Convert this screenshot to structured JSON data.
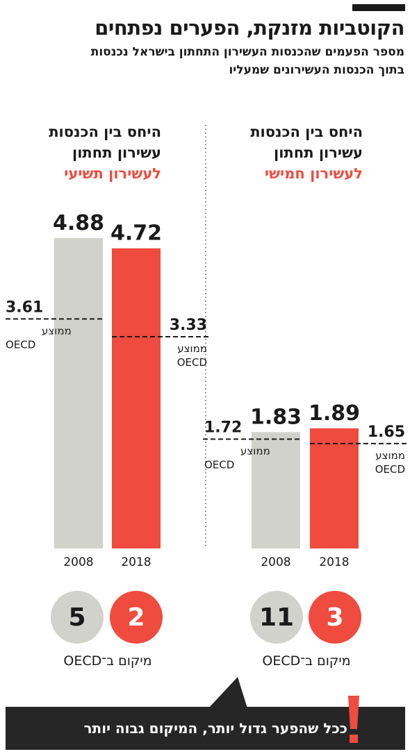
{
  "header": {
    "title": "הקוטביות מזנקת, הפערים נפתחים",
    "subtitle_line1": "מספר הפעמים שהכנסות העשירון התחתון בישראל נכנסות",
    "subtitle_line2": "בתוך הכנסות העשירונים שמעליו"
  },
  "colors": {
    "gray": "#d2d2cc",
    "red": "#ef4b3f",
    "dark": "#262626"
  },
  "chart_data": [
    {
      "type": "bar",
      "title_line1": "היחס בין הכנסות",
      "title_line2": "עשירון תחתון",
      "title_accent": "לעשירון תשיעי",
      "categories": [
        "2008",
        "2018"
      ],
      "values": [
        4.88,
        4.72
      ],
      "value_labels": [
        "4.88",
        "4.72"
      ],
      "oecd": [
        {
          "year": "2008",
          "value": 3.61,
          "label": "3.61"
        },
        {
          "year": "2018",
          "value": 3.33,
          "label": "3.33"
        }
      ],
      "oecd_label_line1": "ממוצע",
      "oecd_label_line2": "OECD",
      "ranks": [
        "5",
        "2"
      ],
      "rank_label": "מיקום ב־OECD"
    },
    {
      "type": "bar",
      "title_line1": "היחס בין הכנסות",
      "title_line2": "עשירון תחתון",
      "title_accent": "לעשירון חמישי",
      "categories": [
        "2008",
        "2018"
      ],
      "values": [
        1.83,
        1.89
      ],
      "value_labels": [
        "1.83",
        "1.89"
      ],
      "oecd": [
        {
          "year": "2008",
          "value": 1.72,
          "label": "1.72"
        },
        {
          "year": "2018",
          "value": 1.65,
          "label": "1.65"
        }
      ],
      "oecd_label_line1": "ממוצע",
      "oecd_label_line2": "OECD",
      "ranks": [
        "11",
        "3"
      ],
      "rank_label": "מיקום ב־OECD"
    }
  ],
  "footer": {
    "text": "ככל שהפער גדול יותר, המיקום גבוה יותר",
    "icon": "exclamation-icon"
  }
}
